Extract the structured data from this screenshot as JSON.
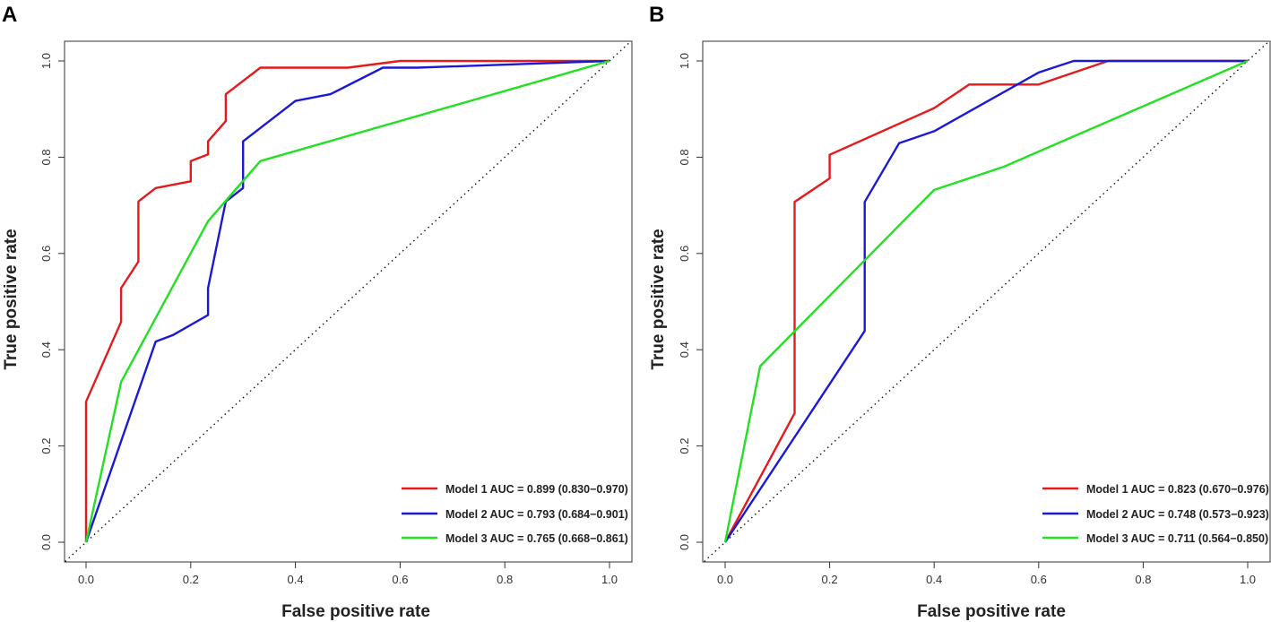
{
  "chart_data": [
    {
      "type": "line",
      "panel_label": "A",
      "title": "",
      "xlabel": "False positive rate",
      "ylabel": "True positive rate",
      "xlim": [
        0,
        1
      ],
      "ylim": [
        0,
        1
      ],
      "xticks": [
        "0.0",
        "0.2",
        "0.4",
        "0.6",
        "0.8",
        "1.0"
      ],
      "yticks": [
        "0.0",
        "0.2",
        "0.4",
        "0.6",
        "0.8",
        "1.0"
      ],
      "grid": false,
      "legend_position": "bottom-right",
      "reference_line": "diagonal dotted",
      "series": [
        {
          "name": "Model 1",
          "legend": "Model 1 AUC = 0.899 (0.830−0.970)",
          "color": "#e41a1c",
          "x": [
            0,
            0,
            0.067,
            0.067,
            0.1,
            0.1,
            0.133,
            0.2,
            0.2,
            0.233,
            0.233,
            0.267,
            0.267,
            0.333,
            0.5,
            0.6,
            1
          ],
          "y": [
            0,
            0.292,
            0.458,
            0.528,
            0.583,
            0.708,
            0.736,
            0.75,
            0.792,
            0.806,
            0.833,
            0.875,
            0.931,
            0.986,
            0.986,
            1,
            1
          ]
        },
        {
          "name": "Model 2",
          "legend": "Model 2 AUC = 0.793 (0.684−0.901)",
          "color": "#1a1ad6",
          "x": [
            0,
            0.133,
            0.167,
            0.233,
            0.233,
            0.267,
            0.3,
            0.3,
            0.4,
            0.467,
            0.567,
            0.633,
            1
          ],
          "y": [
            0,
            0.417,
            0.431,
            0.472,
            0.528,
            0.708,
            0.736,
            0.833,
            0.917,
            0.931,
            0.986,
            0.986,
            1
          ]
        },
        {
          "name": "Model 3",
          "legend": "Model 3 AUC = 0.765 (0.668−0.861)",
          "color": "#22e022",
          "x": [
            0,
            0.067,
            0.233,
            0.333,
            1
          ],
          "y": [
            0,
            0.333,
            0.667,
            0.792,
            1
          ]
        }
      ]
    },
    {
      "type": "line",
      "panel_label": "B",
      "title": "",
      "xlabel": "False positive rate",
      "ylabel": "True positive rate",
      "xlim": [
        0,
        1
      ],
      "ylim": [
        0,
        1
      ],
      "xticks": [
        "0.0",
        "0.2",
        "0.4",
        "0.6",
        "0.8",
        "1.0"
      ],
      "yticks": [
        "0.0",
        "0.2",
        "0.4",
        "0.6",
        "0.8",
        "1.0"
      ],
      "grid": false,
      "legend_position": "bottom-right",
      "reference_line": "diagonal dotted",
      "series": [
        {
          "name": "Model 1",
          "legend": "Model 1 AUC = 0.823 (0.670−0.976)",
          "color": "#e41a1c",
          "x": [
            0,
            0.133,
            0.133,
            0.2,
            0.2,
            0.4,
            0.467,
            0.6,
            0.733,
            1
          ],
          "y": [
            0,
            0.268,
            0.707,
            0.756,
            0.805,
            0.902,
            0.951,
            0.951,
            1,
            1
          ]
        },
        {
          "name": "Model 2",
          "legend": "Model 2 AUC = 0.748 (0.573−0.923)",
          "color": "#1a1ad6",
          "x": [
            0,
            0.267,
            0.267,
            0.333,
            0.4,
            0.6,
            0.667,
            1
          ],
          "y": [
            0,
            0.439,
            0.707,
            0.829,
            0.854,
            0.976,
            1,
            1
          ]
        },
        {
          "name": "Model 3",
          "legend": "Model 3 AUC = 0.711 (0.564−0.850)",
          "color": "#22e022",
          "x": [
            0,
            0.067,
            0.4,
            0.533,
            1
          ],
          "y": [
            0,
            0.366,
            0.732,
            0.78,
            1
          ]
        }
      ]
    }
  ]
}
